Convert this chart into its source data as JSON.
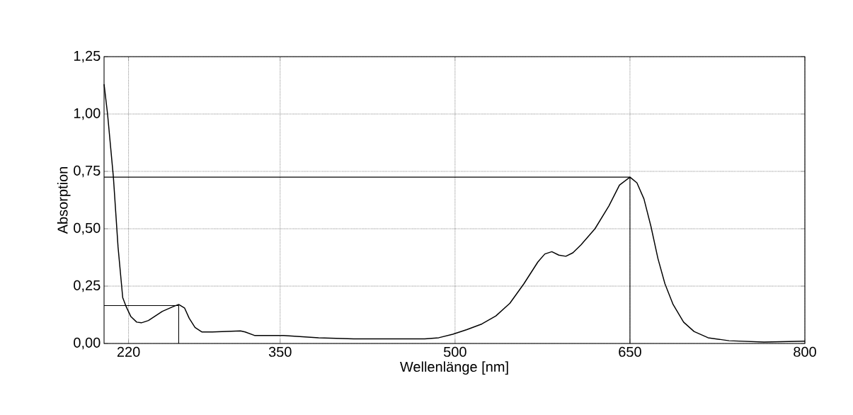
{
  "chart_data": {
    "type": "line",
    "xlabel": "Wellenlänge [nm]",
    "ylabel": "Absorption",
    "xlim": [
      199,
      800
    ],
    "ylim": [
      0,
      1.25
    ],
    "xticks": [
      220,
      350,
      500,
      650,
      800
    ],
    "yticks": [
      {
        "value": 0,
        "label": "0,00"
      },
      {
        "value": 0.25,
        "label": "0,25"
      },
      {
        "value": 0.5,
        "label": "0,50"
      },
      {
        "value": 0.75,
        "label": "0,75"
      },
      {
        "value": 1.0,
        "label": "1,00"
      },
      {
        "value": 1.25,
        "label": "1,25"
      }
    ],
    "grid": true,
    "line_style": "solid",
    "marker": "none",
    "series": [
      {
        "color": "#000000",
        "x": [
          199,
          202,
          207,
          211,
          215,
          218,
          222,
          227,
          231,
          237,
          249,
          258,
          263,
          268,
          272,
          277,
          283,
          292,
          316,
          320,
          328,
          353,
          383,
          413,
          444,
          474,
          486,
          498,
          510,
          523,
          535,
          547,
          559,
          571,
          577,
          583,
          589,
          595,
          601,
          608,
          620,
          632,
          641,
          650,
          656,
          662,
          668,
          674,
          680,
          687,
          696,
          705,
          717,
          735,
          765,
          800
        ],
        "values": [
          1.13,
          1.0,
          0.725,
          0.42,
          0.2,
          0.16,
          0.117,
          0.093,
          0.09,
          0.1,
          0.14,
          0.16,
          0.17,
          0.155,
          0.11,
          0.07,
          0.05,
          0.05,
          0.055,
          0.05,
          0.035,
          0.035,
          0.025,
          0.02,
          0.02,
          0.02,
          0.025,
          0.04,
          0.06,
          0.085,
          0.12,
          0.175,
          0.26,
          0.355,
          0.39,
          0.4,
          0.385,
          0.38,
          0.395,
          0.43,
          0.5,
          0.6,
          0.69,
          0.725,
          0.7,
          0.63,
          0.51,
          0.37,
          0.26,
          0.17,
          0.093,
          0.052,
          0.025,
          0.012,
          0.006,
          0.01
        ]
      },
      {
        "color": "#000000",
        "x": [
          199,
          263,
          263
        ],
        "values": [
          0.165,
          0.165,
          0
        ]
      },
      {
        "color": "#000000",
        "x": [
          199,
          650,
          650
        ],
        "values": [
          0.725,
          0.725,
          0
        ]
      }
    ]
  }
}
